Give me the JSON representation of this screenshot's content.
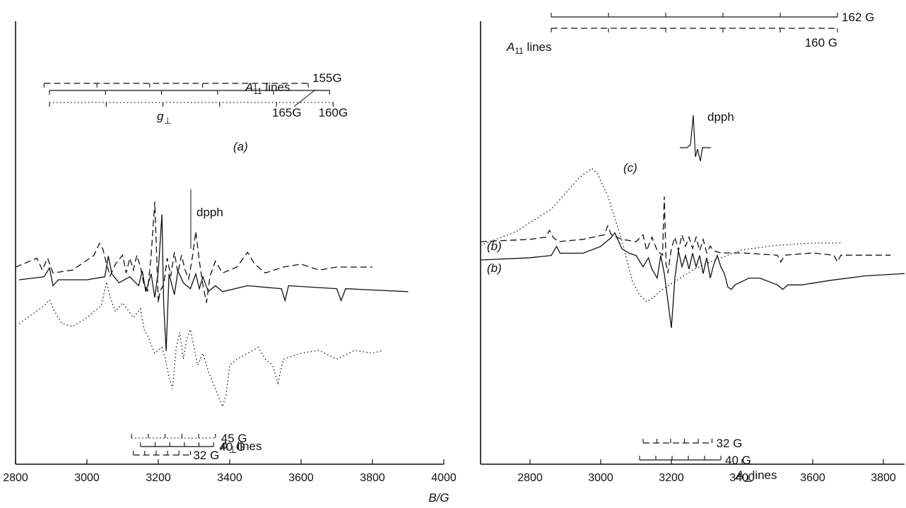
{
  "chart_data": [
    {
      "type": "line",
      "panel": "left",
      "xlim": [
        2800,
        4000
      ],
      "xticks": [
        "2800",
        "3000",
        "3200",
        "3400",
        "3600",
        "3800",
        "4000"
      ],
      "labels": {
        "a": "(a)",
        "g_perp_g": "g",
        "g_perp_sub": "⊥",
        "dpph": "dpph"
      },
      "a_parallel": {
        "title_A": "A",
        "title_sub": "11",
        "title_rest": " lines",
        "scales": [
          {
            "style": "dashed",
            "x_start": 2880,
            "x_end": 3620,
            "label": "155G"
          },
          {
            "style": "solid",
            "x_start": 2895,
            "x_end": 3680,
            "label": ""
          },
          {
            "style": "dotted",
            "x_start": 2895,
            "x_end": 3690,
            "labels": [
              "165G",
              "160G"
            ]
          }
        ]
      },
      "a_perp": {
        "title_A": "A",
        "title_sub": "⊥",
        "title_rest": "lines",
        "scales": [
          {
            "style": "dotted",
            "x_start": 3125,
            "x_end": 3360,
            "label": "45 G"
          },
          {
            "style": "solid",
            "x_start": 3150,
            "x_end": 3355,
            "label": "40 G"
          },
          {
            "style": "dashed",
            "x_start": 3130,
            "x_end": 3290,
            "label": "32 G"
          }
        ]
      },
      "series": [
        {
          "style": "dashed",
          "x": [
            2800,
            2860,
            2875,
            2890,
            2905,
            2960,
            3020,
            3035,
            3045,
            3055,
            3065,
            3080,
            3100,
            3110,
            3120,
            3130,
            3140,
            3150,
            3160,
            3170,
            3180,
            3190,
            3200,
            3205,
            3215,
            3225,
            3235,
            3245,
            3255,
            3265,
            3275,
            3285,
            3295,
            3305,
            3315,
            3325,
            3335,
            3345,
            3360,
            3380,
            3420,
            3450,
            3470,
            3500,
            3550,
            3600,
            3650,
            3700,
            3750,
            3800
          ],
          "y": [
            0,
            3,
            -1,
            3,
            -2,
            -1,
            4,
            8,
            6,
            1,
            -3,
            1,
            4,
            -2,
            3,
            -1,
            4,
            0,
            -6,
            -8,
            4,
            22,
            -12,
            -8,
            -6,
            3,
            -3,
            5,
            -2,
            4,
            -1,
            -4,
            3,
            12,
            2,
            -6,
            -12,
            -3,
            2,
            -2,
            0,
            5,
            1,
            -2,
            0,
            1,
            -1,
            0,
            0,
            0
          ]
        },
        {
          "style": "solid",
          "x": [
            2810,
            2880,
            2895,
            2905,
            2920,
            3000,
            3050,
            3060,
            3070,
            3090,
            3120,
            3145,
            3155,
            3165,
            3180,
            3190,
            3200,
            3210,
            3215,
            3222,
            3230,
            3245,
            3255,
            3270,
            3290,
            3305,
            3315,
            3325,
            3340,
            3360,
            3380,
            3450,
            3545,
            3555,
            3565,
            3700,
            3712,
            3725,
            3900
          ],
          "y": [
            0,
            1,
            4,
            -2,
            0,
            0,
            1,
            8,
            2,
            -1,
            1,
            -2,
            3,
            -4,
            2,
            -6,
            3,
            22,
            -8,
            -24,
            2,
            -5,
            3,
            -1,
            -3,
            2,
            -3,
            1,
            -4,
            -2,
            -4,
            -2,
            -3,
            -7,
            -2,
            -3,
            -7,
            -3,
            -4
          ]
        },
        {
          "style": "dotted",
          "x": [
            2810,
            2880,
            2895,
            2910,
            2930,
            2960,
            3000,
            3040,
            3055,
            3065,
            3080,
            3100,
            3130,
            3150,
            3160,
            3170,
            3190,
            3210,
            3220,
            3230,
            3240,
            3250,
            3260,
            3270,
            3280,
            3290,
            3310,
            3325,
            3340,
            3360,
            3380,
            3390,
            3400,
            3420,
            3450,
            3480,
            3500,
            3520,
            3535,
            3550,
            3600,
            3650,
            3700,
            3750,
            3800,
            3830
          ],
          "y": [
            0,
            6,
            8,
            4,
            0,
            -1,
            2,
            6,
            14,
            9,
            4,
            7,
            2,
            5,
            -2,
            -4,
            -10,
            -8,
            -12,
            -18,
            -22,
            -8,
            -3,
            -12,
            -5,
            -2,
            -14,
            -10,
            -16,
            -22,
            -28,
            -24,
            -14,
            -12,
            -10,
            -8,
            -12,
            -14,
            -20,
            -12,
            -10,
            -9,
            -12,
            -9,
            -10,
            -9
          ]
        }
      ]
    },
    {
      "type": "line",
      "panel": "right",
      "xlim": [
        2660,
        3860
      ],
      "xticks": [
        "2800",
        "3000",
        "3200",
        "3400",
        "3600",
        "3800"
      ],
      "labels": {
        "c": "(c)",
        "b1": "(b)",
        "b2": "(b)",
        "dpph": "dpph"
      },
      "a_parallel": {
        "title_A": "A",
        "title_sub": "11",
        "title_rest": " lines",
        "scales": [
          {
            "style": "solid",
            "x_start": 2860,
            "x_end": 3670,
            "label": "162 G"
          },
          {
            "style": "dashed",
            "x_start": 2860,
            "x_end": 3670,
            "label": "160 G"
          }
        ]
      },
      "a_perp": {
        "title_A": "A",
        "title_sub": "⊥",
        "title_rest": "lines",
        "scales": [
          {
            "style": "dashed",
            "x_start": 3120,
            "x_end": 3315,
            "label": "32 G"
          },
          {
            "style": "solid",
            "x_start": 3110,
            "x_end": 3340,
            "label": "40 G"
          }
        ]
      },
      "series": [
        {
          "style": "dashed",
          "x": [
            2660,
            2800,
            2845,
            2855,
            2865,
            2880,
            2950,
            3010,
            3020,
            3030,
            3060,
            3100,
            3120,
            3130,
            3145,
            3160,
            3175,
            3180,
            3185,
            3190,
            3200,
            3210,
            3220,
            3230,
            3240,
            3250,
            3260,
            3270,
            3280,
            3290,
            3300,
            3310,
            3320,
            3340,
            3400,
            3500,
            3510,
            3520,
            3600,
            3660,
            3670,
            3680,
            3820
          ],
          "y": [
            0,
            1,
            2,
            5,
            2,
            0,
            1,
            3,
            7,
            3,
            1,
            0,
            3,
            -4,
            2,
            -4,
            -6,
            20,
            -10,
            -14,
            -3,
            2,
            -4,
            3,
            -2,
            2,
            -3,
            2,
            -4,
            1,
            -5,
            -2,
            -4,
            -5,
            -5,
            -6,
            -9,
            -6,
            -5,
            -6,
            -9,
            -6,
            -6
          ]
        },
        {
          "style": "solid",
          "x": [
            2660,
            2800,
            2860,
            2875,
            2885,
            2950,
            3000,
            3030,
            3040,
            3060,
            3080,
            3100,
            3120,
            3135,
            3145,
            3160,
            3170,
            3180,
            3190,
            3200,
            3210,
            3220,
            3230,
            3240,
            3250,
            3260,
            3270,
            3280,
            3290,
            3300,
            3310,
            3320,
            3330,
            3340,
            3350,
            3360,
            3370,
            3380,
            3420,
            3450,
            3500,
            3515,
            3530,
            3570,
            3650,
            3750,
            3860
          ],
          "y": [
            0,
            1,
            2,
            6,
            3,
            3,
            6,
            10,
            12,
            5,
            3,
            2,
            -3,
            1,
            -4,
            -8,
            2,
            -6,
            -18,
            -30,
            -8,
            4,
            -3,
            2,
            -4,
            3,
            -3,
            2,
            -6,
            1,
            -8,
            -2,
            2,
            -3,
            -6,
            -12,
            -13,
            -11,
            -8,
            -8,
            -11,
            -13,
            -11,
            -11,
            -9,
            -7,
            -6
          ]
        },
        {
          "style": "dotted",
          "x": [
            2660,
            2760,
            2860,
            2940,
            2975,
            2990,
            3020,
            3060,
            3090,
            3110,
            3130,
            3150,
            3170,
            3200,
            3260,
            3300,
            3400,
            3500,
            3600,
            3680
          ],
          "y": [
            4,
            10,
            20,
            34,
            38,
            36,
            26,
            6,
            -12,
            -18,
            -21,
            -19,
            -16,
            -13,
            -7,
            -4,
            2,
            4,
            5,
            5
          ]
        }
      ]
    }
  ],
  "xlabel": "B/G"
}
